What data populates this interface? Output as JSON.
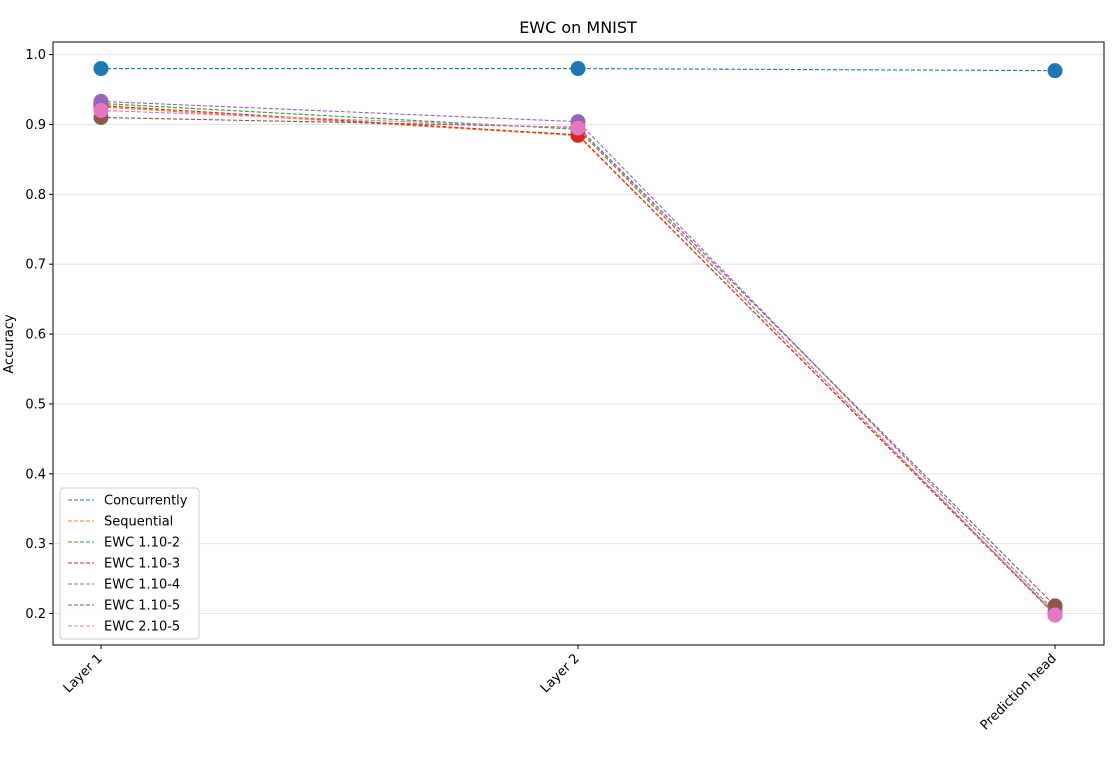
{
  "chart_data": {
    "type": "line",
    "title": "EWC on MNIST",
    "xlabel": "",
    "ylabel": "Accuracy",
    "categories": [
      "Layer 1",
      "Layer 2",
      "Prediction head"
    ],
    "ylim": [
      0.155,
      1.018
    ],
    "yticks": [
      "0.2",
      "0.3",
      "0.4",
      "0.5",
      "0.6",
      "0.7",
      "0.8",
      "0.9",
      "1.0"
    ],
    "grid": "y",
    "legend_position": "lower-left",
    "line_style": "dashed",
    "series": [
      {
        "name": "Concurrently",
        "color": "#1f77b4",
        "values": [
          0.98,
          0.98,
          0.977
        ]
      },
      {
        "name": "Sequential",
        "color": "#ff7f0e",
        "values": [
          0.925,
          0.884,
          0.2
        ]
      },
      {
        "name": "EWC 1.10-2",
        "color": "#2ca02c",
        "values": [
          0.93,
          0.893,
          0.199
        ]
      },
      {
        "name": "EWC 1.10-3",
        "color": "#d62728",
        "values": [
          0.927,
          0.885,
          0.198
        ]
      },
      {
        "name": "EWC 1.10-4",
        "color": "#9467bd",
        "values": [
          0.933,
          0.904,
          0.203
        ]
      },
      {
        "name": "EWC 1.10-5",
        "color": "#8c564b",
        "values": [
          0.91,
          0.896,
          0.211
        ]
      },
      {
        "name": "EWC 2.10-5",
        "color": "#e377c2",
        "values": [
          0.92,
          0.895,
          0.198
        ]
      }
    ]
  }
}
